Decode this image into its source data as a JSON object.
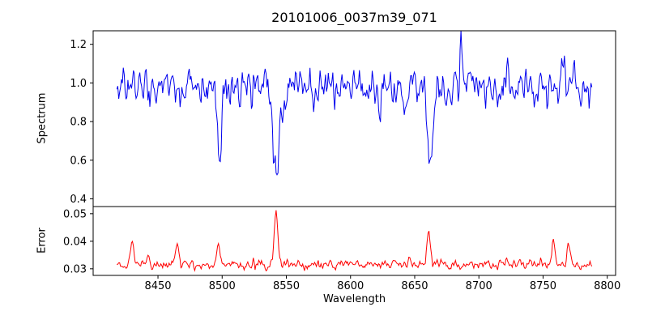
{
  "title": "20101006_0037m39_071",
  "chart_data": {
    "type": "line",
    "title": "20101006_0037m39_071",
    "xlabel": "Wavelength",
    "xlim": [
      8399.5,
      8806.5
    ],
    "x_range": [
      8418,
      8788
    ],
    "n_points": 520,
    "seed": 7,
    "x_ticks": [
      {
        "v": 8450,
        "label": "8450"
      },
      {
        "v": 8500,
        "label": "8500"
      },
      {
        "v": 8550,
        "label": "8550"
      },
      {
        "v": 8600,
        "label": "8600"
      },
      {
        "v": 8650,
        "label": "8650"
      },
      {
        "v": 8700,
        "label": "8700"
      },
      {
        "v": 8750,
        "label": "8750"
      },
      {
        "v": 8800,
        "label": "8800"
      }
    ],
    "panels": [
      {
        "name": "Spectrum",
        "ylabel": "Spectrum",
        "color": "#0000ee",
        "ylim": [
          0.36,
          1.27
        ],
        "yticks": [
          {
            "v": 0.4,
            "label": "0.4"
          },
          {
            "v": 0.6,
            "label": "0.6"
          },
          {
            "v": 0.8,
            "label": "0.8"
          },
          {
            "v": 1.0,
            "label": "1.0"
          },
          {
            "v": 1.2,
            "label": "1.2"
          }
        ],
        "baseline": 0.975,
        "noise_sigma": 0.05,
        "absorption_lines": [
          {
            "center": 8498,
            "depth": 0.37,
            "sigma": 1.4
          },
          {
            "center": 8542,
            "depth": 0.54,
            "sigma": 2.2
          },
          {
            "center": 8662,
            "depth": 0.47,
            "sigma": 1.9
          }
        ],
        "peaks": [
          {
            "center": 8686,
            "height": 0.2,
            "sigma": 0.9
          },
          {
            "center": 8766,
            "height": 0.16,
            "sigma": 0.8
          },
          {
            "center": 8774,
            "height": 0.13,
            "sigma": 0.8
          }
        ]
      },
      {
        "name": "Error",
        "ylabel": "Error",
        "color": "#ff0000",
        "ylim": [
          0.0276,
          0.0526
        ],
        "yticks": [
          {
            "v": 0.03,
            "label": "0.03"
          },
          {
            "v": 0.04,
            "label": "0.04"
          },
          {
            "v": 0.05,
            "label": "0.05"
          }
        ],
        "baseline": 0.0315,
        "noise_sigma": 0.0009,
        "peaks": [
          {
            "center": 8430,
            "height": 0.0085,
            "sigma": 1.2
          },
          {
            "center": 8442,
            "height": 0.004,
            "sigma": 1.0
          },
          {
            "center": 8465,
            "height": 0.0075,
            "sigma": 1.2
          },
          {
            "center": 8497,
            "height": 0.008,
            "sigma": 1.4
          },
          {
            "center": 8542,
            "height": 0.0185,
            "sigma": 1.5
          },
          {
            "center": 8661,
            "height": 0.011,
            "sigma": 1.5
          },
          {
            "center": 8758,
            "height": 0.009,
            "sigma": 1.2
          },
          {
            "center": 8770,
            "height": 0.008,
            "sigma": 1.1
          }
        ]
      }
    ]
  }
}
